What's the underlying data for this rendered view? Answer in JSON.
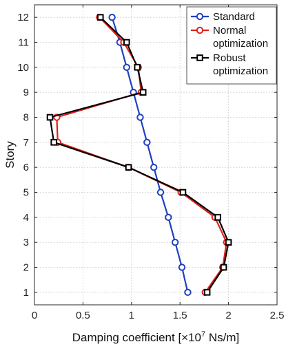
{
  "chart_data": {
    "type": "line",
    "xlabel": "Damping coefficient [×10",
    "xlabel_exp": "7",
    "xlabel_unit": " Ns/m]",
    "ylabel": "Story",
    "xlim": [
      0,
      2.5
    ],
    "ylim": [
      0.5,
      12.5
    ],
    "xticks": [
      "0",
      "0.5",
      "1",
      "1.5",
      "2",
      "2.5"
    ],
    "yticks": [
      "1",
      "2",
      "3",
      "4",
      "5",
      "6",
      "7",
      "8",
      "9",
      "10",
      "11",
      "12"
    ],
    "grid": true,
    "legend_position": "top-right",
    "y": [
      1,
      2,
      3,
      4,
      5,
      6,
      7,
      8,
      9,
      10,
      11,
      12
    ],
    "series": [
      {
        "name": "Standard",
        "marker": "circle",
        "color": "#1f3fbf",
        "values": [
          1.58,
          1.52,
          1.45,
          1.38,
          1.3,
          1.23,
          1.16,
          1.09,
          1.02,
          0.95,
          0.88,
          0.8
        ]
      },
      {
        "name": "Normal optimization",
        "marker": "circle",
        "color": "#e0201b",
        "values": [
          1.76,
          1.94,
          1.98,
          1.86,
          1.51,
          0.97,
          0.24,
          0.23,
          1.1,
          1.07,
          0.92,
          0.67
        ]
      },
      {
        "name": "Robust optimization",
        "marker": "square",
        "color": "#000000",
        "values": [
          1.78,
          1.95,
          2.0,
          1.89,
          1.53,
          0.97,
          0.2,
          0.16,
          1.12,
          1.06,
          0.95,
          0.68
        ]
      }
    ],
    "legend": [
      [
        "Standard"
      ],
      [
        "Normal",
        "optimization"
      ],
      [
        "Robust",
        "optimization"
      ]
    ]
  }
}
